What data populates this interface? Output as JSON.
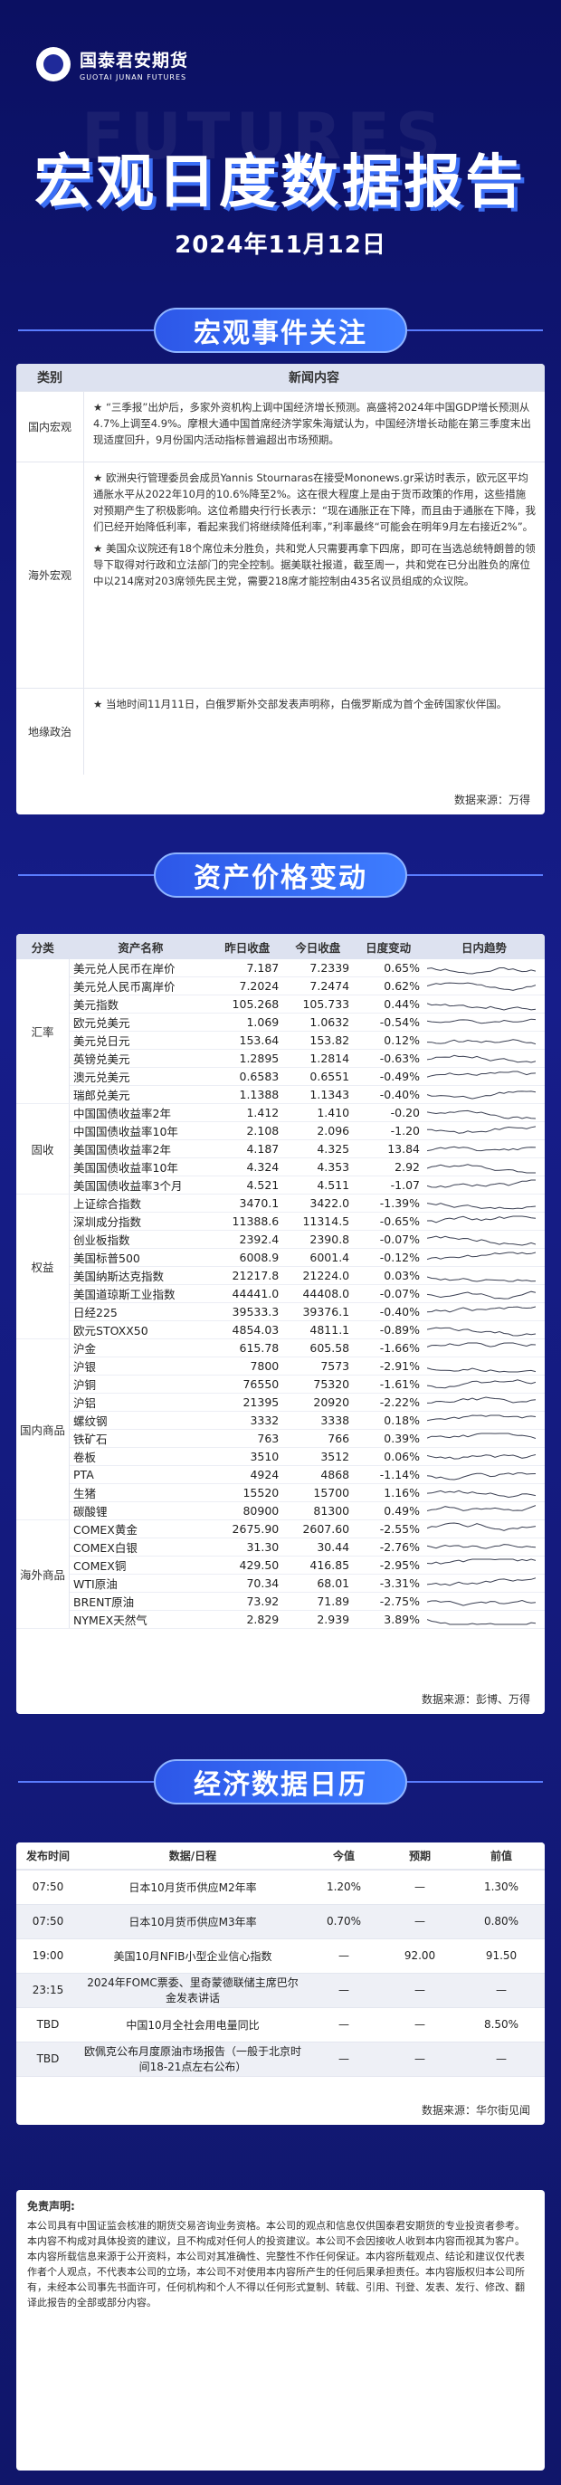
{
  "brand": {
    "cn": "国泰君安期货",
    "en": "GUOTAI JUNAN FUTURES",
    "watermark": "FUTURES"
  },
  "title": "宏观日度数据报告",
  "date": "2024年11月12日",
  "events": {
    "heading": "宏观事件关注",
    "col_cat": "类别",
    "col_news": "新闻内容",
    "rows": [
      {
        "cat": "国内宏观",
        "items": [
          "★ “三季报”出炉后，多家外资机构上调中国经济增长预测。高盛将2024年中国GDP增长预测从4.7%上调至4.9%。摩根大通中国首席经济学家朱海斌认为，中国经济增长动能在第三季度末出现适度回升，9月份国内活动指标普遍超出市场预期。"
        ]
      },
      {
        "cat": "海外宏观",
        "items": [
          "★ 欧洲央行管理委员会成员Yannis Stournaras在接受Mononews.gr采访时表示，欧元区平均通胀水平从2022年10月的10.6%降至2%。这在很大程度上是由于货币政策的作用，这些措施对预期产生了积极影响。这位希腊央行行长表示：“现在通胀正在下降，而且由于通胀在下降，我们已经开始降低利率，看起来我们将继续降低利率，”利率最终“可能会在明年9月左右接近2%”。",
          "★ 美国众议院还有18个席位未分胜负，共和党人只需要再拿下四席，即可在当选总统特朗普的领导下取得对行政和立法部门的完全控制。据美联社报道，截至周一，共和党在已分出胜负的席位中以214席对203席领先民主党，需要218席才能控制由435名议员组成的众议院。"
        ]
      },
      {
        "cat": "地缘政治",
        "items": [
          "★ 当地时间11月11日，白俄罗斯外交部发表声明称，白俄罗斯成为首个金砖国家伙伴国。"
        ]
      }
    ],
    "source": "数据来源：万得"
  },
  "assets": {
    "heading": "资产价格变动",
    "cols": [
      "分类",
      "资产名称",
      "昨日收盘",
      "今日收盘",
      "日度变动",
      "日内趋势"
    ],
    "groups": [
      {
        "cat": "汇率",
        "rows": [
          {
            "name": "美元兑人民币在岸价",
            "prev": "7.187",
            "cur": "7.2339",
            "chg": "0.65%"
          },
          {
            "name": "美元兑人民币离岸价",
            "prev": "7.2024",
            "cur": "7.2474",
            "chg": "0.62%"
          },
          {
            "name": "美元指数",
            "prev": "105.268",
            "cur": "105.733",
            "chg": "0.44%"
          },
          {
            "name": "欧元兑美元",
            "prev": "1.069",
            "cur": "1.0632",
            "chg": "-0.54%"
          },
          {
            "name": "美元兑日元",
            "prev": "153.64",
            "cur": "153.82",
            "chg": "0.12%"
          },
          {
            "name": "英镑兑美元",
            "prev": "1.2895",
            "cur": "1.2814",
            "chg": "-0.63%"
          },
          {
            "name": "澳元兑美元",
            "prev": "0.6583",
            "cur": "0.6551",
            "chg": "-0.49%"
          },
          {
            "name": "瑞郎兑美元",
            "prev": "1.1388",
            "cur": "1.1343",
            "chg": "-0.40%"
          }
        ]
      },
      {
        "cat": "固收",
        "rows": [
          {
            "name": "中国国债收益率2年",
            "prev": "1.412",
            "cur": "1.410",
            "chg": "-0.20"
          },
          {
            "name": "中国国债收益率10年",
            "prev": "2.108",
            "cur": "2.096",
            "chg": "-1.20"
          },
          {
            "name": "美国国债收益率2年",
            "prev": "4.187",
            "cur": "4.325",
            "chg": "13.84"
          },
          {
            "name": "美国国债收益率10年",
            "prev": "4.324",
            "cur": "4.353",
            "chg": "2.92"
          },
          {
            "name": "美国国债收益率3个月",
            "prev": "4.521",
            "cur": "4.511",
            "chg": "-1.07"
          }
        ]
      },
      {
        "cat": "权益",
        "rows": [
          {
            "name": "上证综合指数",
            "prev": "3470.1",
            "cur": "3422.0",
            "chg": "-1.39%"
          },
          {
            "name": "深圳成分指数",
            "prev": "11388.6",
            "cur": "11314.5",
            "chg": "-0.65%"
          },
          {
            "name": "创业板指数",
            "prev": "2392.4",
            "cur": "2390.8",
            "chg": "-0.07%"
          },
          {
            "name": "美国标普500",
            "prev": "6008.9",
            "cur": "6001.4",
            "chg": "-0.12%"
          },
          {
            "name": "美国纳斯达克指数",
            "prev": "21217.8",
            "cur": "21224.0",
            "chg": "0.03%"
          },
          {
            "name": "美国道琼斯工业指数",
            "prev": "44441.0",
            "cur": "44408.0",
            "chg": "-0.07%"
          },
          {
            "name": "日经225",
            "prev": "39533.3",
            "cur": "39376.1",
            "chg": "-0.40%"
          },
          {
            "name": "欧元STOXX50",
            "prev": "4854.03",
            "cur": "4811.1",
            "chg": "-0.89%"
          }
        ]
      },
      {
        "cat": "国内商品",
        "rows": [
          {
            "name": "沪金",
            "prev": "615.78",
            "cur": "605.58",
            "chg": "-1.66%"
          },
          {
            "name": "沪银",
            "prev": "7800",
            "cur": "7573",
            "chg": "-2.91%"
          },
          {
            "name": "沪铜",
            "prev": "76550",
            "cur": "75320",
            "chg": "-1.61%"
          },
          {
            "name": "沪铝",
            "prev": "21395",
            "cur": "20920",
            "chg": "-2.22%"
          },
          {
            "name": "螺纹钢",
            "prev": "3332",
            "cur": "3338",
            "chg": "0.18%"
          },
          {
            "name": "铁矿石",
            "prev": "763",
            "cur": "766",
            "chg": "0.39%"
          },
          {
            "name": "卷板",
            "prev": "3510",
            "cur": "3512",
            "chg": "0.06%"
          },
          {
            "name": "PTA",
            "prev": "4924",
            "cur": "4868",
            "chg": "-1.14%"
          },
          {
            "name": "生猪",
            "prev": "15520",
            "cur": "15700",
            "chg": "1.16%"
          },
          {
            "name": "碳酸锂",
            "prev": "80900",
            "cur": "81300",
            "chg": "0.49%"
          }
        ]
      },
      {
        "cat": "海外商品",
        "rows": [
          {
            "name": "COMEX黄金",
            "prev": "2675.90",
            "cur": "2607.60",
            "chg": "-2.55%"
          },
          {
            "name": "COMEX白银",
            "prev": "31.30",
            "cur": "30.44",
            "chg": "-2.76%"
          },
          {
            "name": "COMEX铜",
            "prev": "429.50",
            "cur": "416.85",
            "chg": "-2.95%"
          },
          {
            "name": "WTI原油",
            "prev": "70.34",
            "cur": "68.01",
            "chg": "-3.31%"
          },
          {
            "name": "BRENT原油",
            "prev": "73.92",
            "cur": "71.89",
            "chg": "-2.75%"
          },
          {
            "name": "NYMEX天然气",
            "prev": "2.829",
            "cur": "2.939",
            "chg": "3.89%"
          }
        ]
      }
    ],
    "source": "数据来源：彭博、万得"
  },
  "calendar": {
    "heading": "经济数据日历",
    "cols": [
      "发布时间",
      "数据/日程",
      "今值",
      "预期",
      "前值"
    ],
    "rows": [
      {
        "time": "07:50",
        "item": "日本10月货币供应M2年率",
        "now": "1.20%",
        "exp": "—",
        "prev": "1.30%"
      },
      {
        "time": "07:50",
        "item": "日本10月货币供应M3年率",
        "now": "0.70%",
        "exp": "—",
        "prev": "0.80%"
      },
      {
        "time": "19:00",
        "item": "美国10月NFIB小型企业信心指数",
        "now": "—",
        "exp": "92.00",
        "prev": "91.50"
      },
      {
        "time": "23:15",
        "item": "2024年FOMC票委、里奇蒙德联储主席巴尔金发表讲话",
        "now": "—",
        "exp": "—",
        "prev": "—"
      },
      {
        "time": "TBD",
        "item": "中国10月全社会用电量同比",
        "now": "—",
        "exp": "—",
        "prev": "8.50%"
      },
      {
        "time": "TBD",
        "item": "欧佩克公布月度原油市场报告（一般于北京时间18-21点左右公布）",
        "now": "—",
        "exp": "—",
        "prev": "—"
      }
    ],
    "source": "数据来源：华尔街见闻"
  },
  "disclaimer": {
    "title": "免责声明:",
    "text": "本公司具有中国证监会核准的期货交易咨询业务资格。本公司的观点和信息仅供国泰君安期货的专业投资者参考。本内容不构成对具体投资的建议，且不构成对任何人的投资建议。本公司不会因接收人收到本内容而视其为客户。本内容所载信息来源于公开资料，本公司对其准确性、完整性不作任何保证。本内容所载观点、结论和建议仅代表作者个人观点，不代表本公司的立场，本公司不对使用本内容所产生的任何后果承担责任。本内容版权归本公司所有，未经本公司事先书面许可，任何机构和个人不得以任何形式复制、转载、引用、刊登、发表、发行、修改、翻译此报告的全部或部分内容。"
  }
}
